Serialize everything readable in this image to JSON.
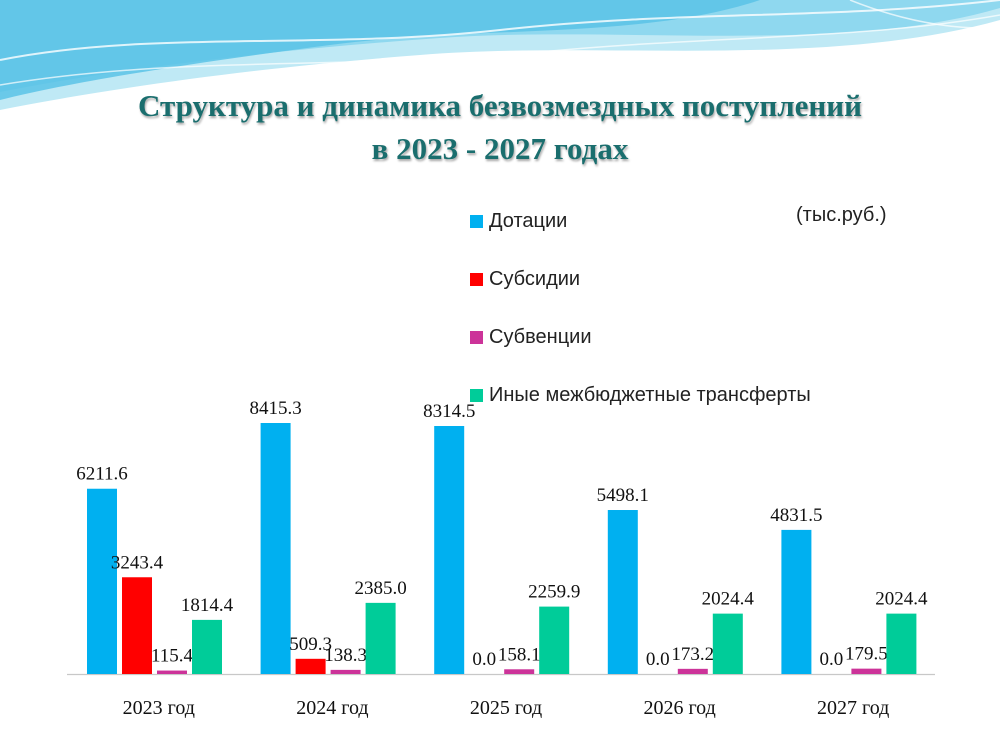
{
  "slide": {
    "title_line1": "Структура и динамика безвозмездных поступлений",
    "title_line2": "в 2023 - 2027 годах",
    "unit": "(тыс.руб.)"
  },
  "colors": {
    "decor_blue": "#5bc3e6",
    "decor_light": "#bfe9f5",
    "title": "#1a6e6e"
  },
  "chart_data": {
    "type": "bar",
    "categories": [
      "2023 год",
      "2024 год",
      "2025 год",
      "2026 год",
      "2027 год"
    ],
    "series": [
      {
        "name": "Дотации",
        "color": "#00b0f0",
        "values": [
          6211.6,
          8415.3,
          8314.5,
          5498.1,
          4831.5
        ],
        "labels": [
          "6211.6",
          "8415.3",
          "8314.5",
          "5498.1",
          "4831.5"
        ]
      },
      {
        "name": "Субсидии",
        "color": "#ff0000",
        "values": [
          3243.4,
          509.3,
          0.0,
          0.0,
          0.0
        ],
        "labels": [
          "3243.4",
          "509.3",
          "0.0",
          "0.0",
          "0.0"
        ]
      },
      {
        "name": "Субвенции",
        "color": "#cc3399",
        "values": [
          115.4,
          138.3,
          158.1,
          173.2,
          179.5
        ],
        "labels": [
          "115.4",
          "138.3",
          "158.1",
          "173.2",
          "179.5"
        ]
      },
      {
        "name": "Иные межбюджетные трансферты",
        "color": "#00cc99",
        "values": [
          1814.4,
          2385.0,
          2259.9,
          2024.4,
          2024.4
        ],
        "labels": [
          "1814.4",
          "2385.0",
          "2259.9",
          "2024.4",
          "2024.4"
        ]
      }
    ],
    "ylim": [
      0,
      8415.3
    ],
    "grid": false,
    "legend_position": "top-right"
  }
}
